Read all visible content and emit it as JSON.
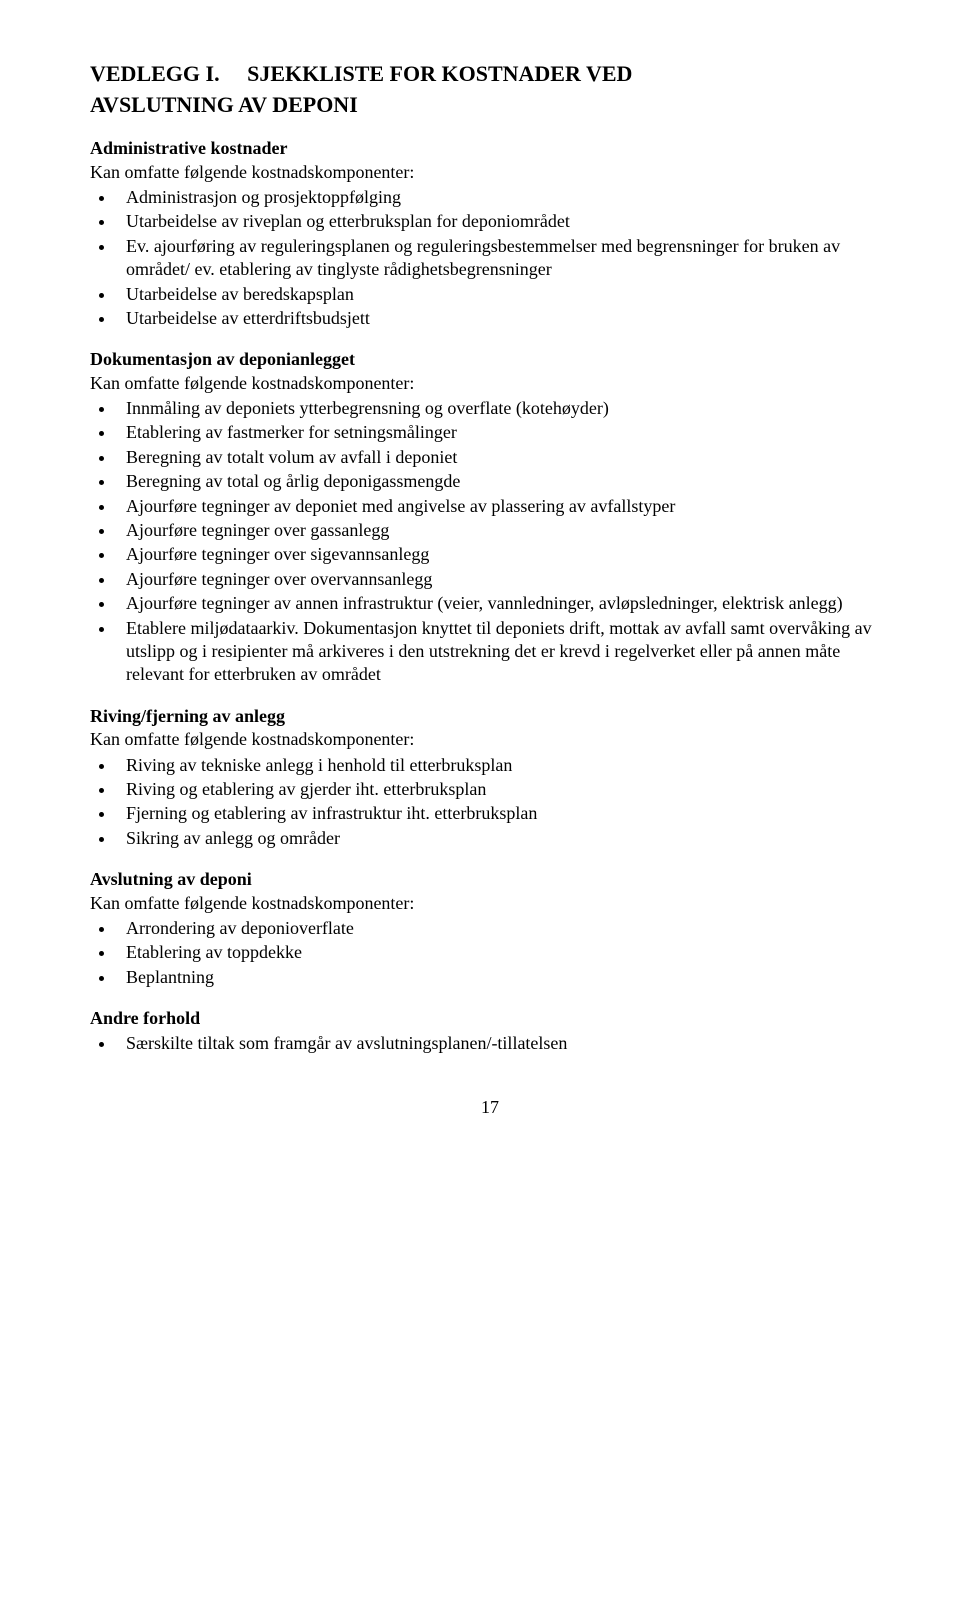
{
  "heading": {
    "line1_part1": "VEDLEGG I.",
    "line1_part2": "SJEKKLISTE FOR KOSTNADER VED",
    "line2": "AVSLUTNING AV DEPONI"
  },
  "sections": [
    {
      "title": "Administrative kostnader",
      "subtitle": "Kan omfatte følgende kostnadskomponenter:",
      "items": [
        "Administrasjon og prosjektoppfølging",
        "Utarbeidelse av riveplan og etterbruksplan for deponiområdet",
        "Ev. ajourføring av reguleringsplanen og reguleringsbestemmelser med begrensninger for bruken av området/ ev. etablering av tinglyste rådighetsbegrensninger",
        "Utarbeidelse av beredskapsplan",
        "Utarbeidelse av etterdriftsbudsjett"
      ]
    },
    {
      "title": "Dokumentasjon av deponianlegget",
      "subtitle": "Kan omfatte følgende kostnadskomponenter:",
      "items": [
        "Innmåling av deponiets ytterbegrensning og overflate (kotehøyder)",
        "Etablering av fastmerker for setningsmålinger",
        "Beregning av totalt volum av avfall i deponiet",
        "Beregning av total og årlig deponigassmengde",
        "Ajourføre tegninger av deponiet med angivelse av plassering av avfallstyper",
        "Ajourføre tegninger over gassanlegg",
        "Ajourføre tegninger over sigevannsanlegg",
        "Ajourføre tegninger over overvannsanlegg",
        "Ajourføre tegninger av annen infrastruktur (veier, vannledninger, avløpsledninger, elektrisk anlegg)",
        "Etablere miljødataarkiv. Dokumentasjon knyttet til deponiets drift, mottak av avfall samt overvåking av utslipp og i resipienter må arkiveres i den utstrekning det er krevd i regelverket eller på annen måte relevant for etterbruken av området"
      ]
    },
    {
      "title": "Riving/fjerning av anlegg",
      "subtitle": "Kan omfatte følgende kostnadskomponenter:",
      "items": [
        "Riving av tekniske anlegg i henhold til etterbruksplan",
        "Riving og etablering av gjerder iht. etterbruksplan",
        "Fjerning og etablering av infrastruktur iht. etterbruksplan",
        "Sikring av anlegg og områder"
      ]
    },
    {
      "title": "Avslutning av deponi",
      "subtitle": "Kan omfatte følgende kostnadskomponenter:",
      "items": [
        "Arrondering av deponioverflate",
        "Etablering av toppdekke",
        "Beplantning"
      ]
    },
    {
      "title": "Andre forhold",
      "subtitle": "",
      "items": [
        "Særskilte tiltak som framgår av avslutningsplanen/-tillatelsen"
      ]
    }
  ],
  "page_number": "17"
}
